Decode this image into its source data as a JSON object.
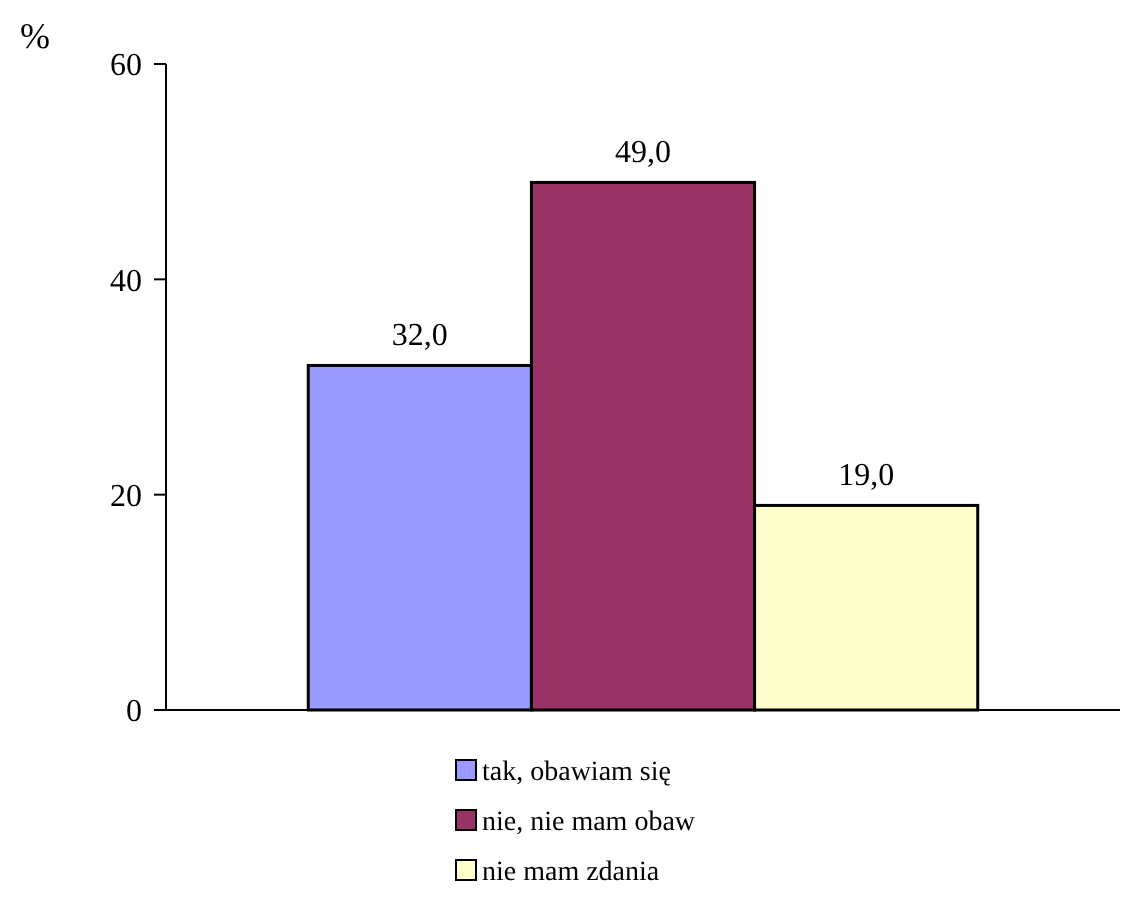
{
  "chart_data": {
    "type": "bar",
    "ylabel": "%",
    "categories": [
      null
    ],
    "series": [
      {
        "name": "tak, obawiam się",
        "color": "#9999ff",
        "values": [
          32
        ],
        "value_labels": [
          "32,0"
        ]
      },
      {
        "name": "nie, nie mam obaw",
        "color": "#993366",
        "values": [
          49
        ],
        "value_labels": [
          "49,0"
        ]
      },
      {
        "name": "nie mam zdania",
        "color": "#ffffcc",
        "values": [
          19
        ],
        "value_labels": [
          "19,0"
        ]
      }
    ],
    "ylim": [
      0,
      60
    ],
    "yticks": [
      0,
      20,
      40,
      60
    ],
    "legend": "bottom"
  }
}
